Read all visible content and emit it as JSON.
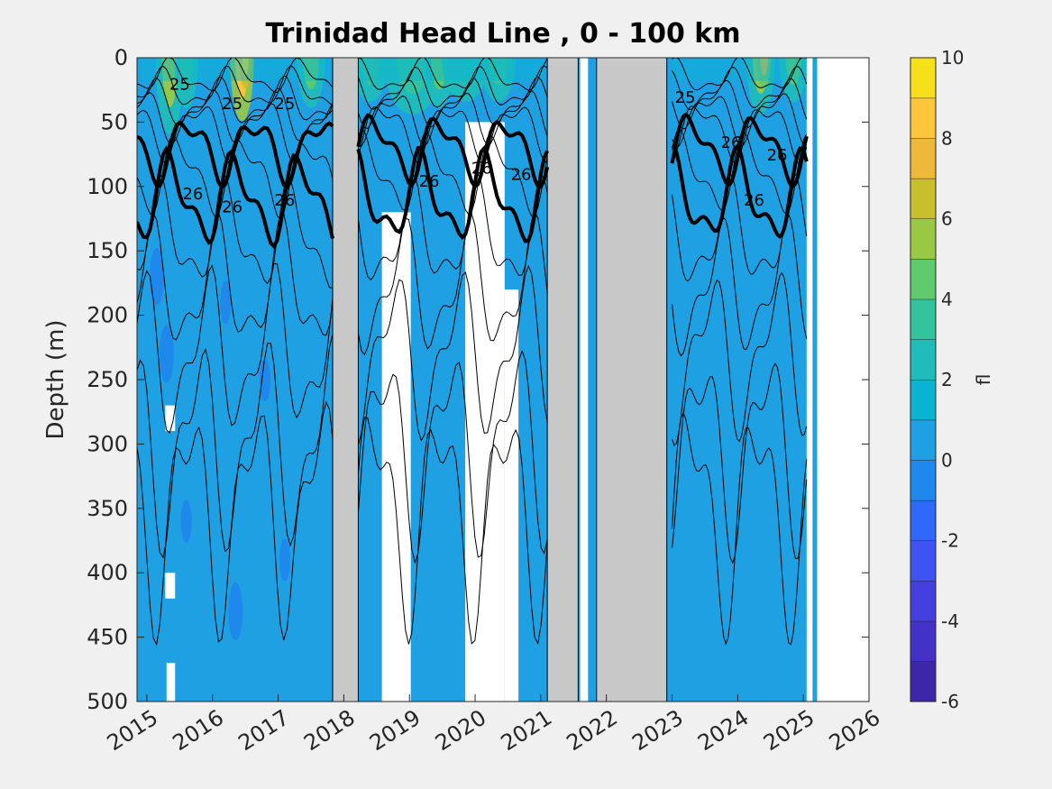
{
  "chart_data": {
    "type": "heatmap",
    "title": "Trinidad Head Line , 0 - 100 km",
    "xlabel": "",
    "ylabel": "Depth (m)",
    "x_ticks": [
      "2015",
      "2016",
      "2017",
      "2018",
      "2019",
      "2020",
      "2021",
      "2022",
      "2023",
      "2024",
      "2025",
      "2026"
    ],
    "y_ticks": [
      "0",
      "50",
      "100",
      "150",
      "200",
      "250",
      "300",
      "350",
      "400",
      "450",
      "500"
    ],
    "xlim": [
      2014.85,
      2026.0
    ],
    "ylim": [
      0,
      500
    ],
    "y_reversed": true,
    "colorbar": {
      "label": "fl",
      "range": [
        -6,
        10
      ],
      "tick_labels": [
        "10",
        "8",
        "6",
        "4",
        "2",
        "0",
        "-2",
        "-4",
        "-6"
      ],
      "levels": [
        {
          "from": -6,
          "to": -5,
          "color": "#3d26a8"
        },
        {
          "from": -5,
          "to": -4,
          "color": "#4331c8"
        },
        {
          "from": -4,
          "to": -3,
          "color": "#4440e0"
        },
        {
          "from": -3,
          "to": -2,
          "color": "#3f52f2"
        },
        {
          "from": -2,
          "to": -1,
          "color": "#3068fb"
        },
        {
          "from": -1,
          "to": 0,
          "color": "#1e88ec"
        },
        {
          "from": 0,
          "to": 1,
          "color": "#1fa0e2"
        },
        {
          "from": 1,
          "to": 2,
          "color": "#0bb3d2"
        },
        {
          "from": 2,
          "to": 3,
          "color": "#1fbcb9"
        },
        {
          "from": 3,
          "to": 4,
          "color": "#33c49e"
        },
        {
          "from": 4,
          "to": 5,
          "color": "#5fcb6e"
        },
        {
          "from": 5,
          "to": 6,
          "color": "#99c845"
        },
        {
          "from": 6,
          "to": 7,
          "color": "#c8bf2c"
        },
        {
          "from": 7,
          "to": 8,
          "color": "#eeb83a"
        },
        {
          "from": 8,
          "to": 9,
          "color": "#fbc63a"
        },
        {
          "from": 9,
          "to": 10,
          "color": "#f6e01c"
        }
      ]
    },
    "background_value_color": "#1fa0e2",
    "no_data_color": "#ffffff",
    "gap_color": "#c8c8c8",
    "gap_periods": [
      {
        "start": 2017.83,
        "end": 2018.22
      },
      {
        "start": 2021.1,
        "end": 2021.57
      },
      {
        "start": 2021.85,
        "end": 2022.92
      }
    ],
    "contour_labels": [
      "25",
      "26"
    ],
    "contour_thick_isopycnal": "26"
  }
}
